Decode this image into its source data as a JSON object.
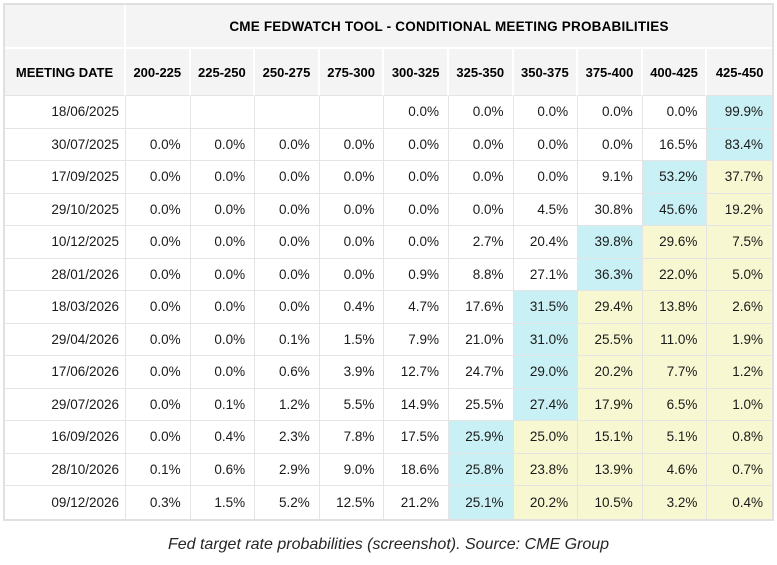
{
  "table": {
    "title": "CME FEDWATCH TOOL - CONDITIONAL MEETING PROBABILITIES",
    "columns": [
      "MEETING DATE",
      "200-225",
      "225-250",
      "250-275",
      "275-300",
      "300-325",
      "325-350",
      "350-375",
      "375-400",
      "400-425",
      "425-450"
    ],
    "rows": [
      {
        "date": "18/06/2025",
        "values": [
          "",
          "",
          "",
          "",
          "0.0%",
          "0.0%",
          "0.0%",
          "0.0%",
          "0.0%",
          "99.9%"
        ],
        "cyan": [
          9
        ],
        "yellow": []
      },
      {
        "date": "30/07/2025",
        "values": [
          "0.0%",
          "0.0%",
          "0.0%",
          "0.0%",
          "0.0%",
          "0.0%",
          "0.0%",
          "0.0%",
          "16.5%",
          "83.4%"
        ],
        "cyan": [
          9
        ],
        "yellow": []
      },
      {
        "date": "17/09/2025",
        "values": [
          "0.0%",
          "0.0%",
          "0.0%",
          "0.0%",
          "0.0%",
          "0.0%",
          "0.0%",
          "9.1%",
          "53.2%",
          "37.7%"
        ],
        "cyan": [
          8
        ],
        "yellow": [
          9
        ]
      },
      {
        "date": "29/10/2025",
        "values": [
          "0.0%",
          "0.0%",
          "0.0%",
          "0.0%",
          "0.0%",
          "0.0%",
          "4.5%",
          "30.8%",
          "45.6%",
          "19.2%"
        ],
        "cyan": [
          8
        ],
        "yellow": [
          9
        ]
      },
      {
        "date": "10/12/2025",
        "values": [
          "0.0%",
          "0.0%",
          "0.0%",
          "0.0%",
          "0.0%",
          "2.7%",
          "20.4%",
          "39.8%",
          "29.6%",
          "7.5%"
        ],
        "cyan": [
          7
        ],
        "yellow": [
          8,
          9
        ]
      },
      {
        "date": "28/01/2026",
        "values": [
          "0.0%",
          "0.0%",
          "0.0%",
          "0.0%",
          "0.9%",
          "8.8%",
          "27.1%",
          "36.3%",
          "22.0%",
          "5.0%"
        ],
        "cyan": [
          7
        ],
        "yellow": [
          8,
          9
        ]
      },
      {
        "date": "18/03/2026",
        "values": [
          "0.0%",
          "0.0%",
          "0.0%",
          "0.4%",
          "4.7%",
          "17.6%",
          "31.5%",
          "29.4%",
          "13.8%",
          "2.6%"
        ],
        "cyan": [
          6
        ],
        "yellow": [
          7,
          8,
          9
        ]
      },
      {
        "date": "29/04/2026",
        "values": [
          "0.0%",
          "0.0%",
          "0.1%",
          "1.5%",
          "7.9%",
          "21.0%",
          "31.0%",
          "25.5%",
          "11.0%",
          "1.9%"
        ],
        "cyan": [
          6
        ],
        "yellow": [
          7,
          8,
          9
        ]
      },
      {
        "date": "17/06/2026",
        "values": [
          "0.0%",
          "0.0%",
          "0.6%",
          "3.9%",
          "12.7%",
          "24.7%",
          "29.0%",
          "20.2%",
          "7.7%",
          "1.2%"
        ],
        "cyan": [
          6
        ],
        "yellow": [
          7,
          8,
          9
        ]
      },
      {
        "date": "29/07/2026",
        "values": [
          "0.0%",
          "0.1%",
          "1.2%",
          "5.5%",
          "14.9%",
          "25.5%",
          "27.4%",
          "17.9%",
          "6.5%",
          "1.0%"
        ],
        "cyan": [
          6
        ],
        "yellow": [
          7,
          8,
          9
        ]
      },
      {
        "date": "16/09/2026",
        "values": [
          "0.0%",
          "0.4%",
          "2.3%",
          "7.8%",
          "17.5%",
          "25.9%",
          "25.0%",
          "15.1%",
          "5.1%",
          "0.8%"
        ],
        "cyan": [
          5
        ],
        "yellow": [
          6,
          7,
          8,
          9
        ]
      },
      {
        "date": "28/10/2026",
        "values": [
          "0.1%",
          "0.6%",
          "2.9%",
          "9.0%",
          "18.6%",
          "25.8%",
          "23.8%",
          "13.9%",
          "4.6%",
          "0.7%"
        ],
        "cyan": [
          5
        ],
        "yellow": [
          6,
          7,
          8,
          9
        ]
      },
      {
        "date": "09/12/2026",
        "values": [
          "0.3%",
          "1.5%",
          "5.2%",
          "12.5%",
          "21.2%",
          "25.1%",
          "20.2%",
          "10.5%",
          "3.2%",
          "0.4%"
        ],
        "cyan": [
          5
        ],
        "yellow": [
          6,
          7,
          8,
          9
        ]
      }
    ]
  },
  "caption": "Fed target rate probabilities (screenshot). Source: CME Group",
  "colors": {
    "highlight_cyan": "#c9f0f4",
    "highlight_yellow": "#f7f7d2",
    "header_bg": "#f4f4f4",
    "grid_line": "#e4e4e4",
    "outer_border": "#e0e0e0"
  }
}
